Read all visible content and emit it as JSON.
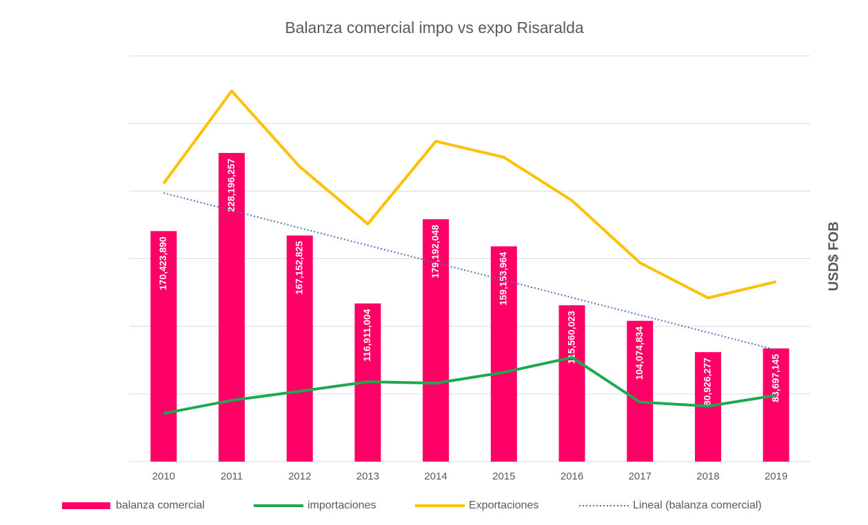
{
  "chart_data": {
    "type": "bar",
    "title": "Balanza comercial impo vs expo Risaralda",
    "y_axis_label": "USD$ FOB",
    "categories": [
      "2010",
      "2011",
      "2012",
      "2013",
      "2014",
      "2015",
      "2016",
      "2017",
      "2018",
      "2019"
    ],
    "series": [
      {
        "name": "balanza comercial",
        "type": "bar",
        "color": "#ff0066",
        "values": [
          170423890,
          228196257,
          167152825,
          116911004,
          179192048,
          159153964,
          115560023,
          104074834,
          80926277,
          83697145
        ],
        "value_labels": [
          "170,423,890",
          "228,196,257",
          "167,152,825",
          "116,911,004",
          "179,192,048",
          "159,153,964",
          "115,560,023",
          "104,074,834",
          "80,926,277",
          "83,697,145"
        ]
      },
      {
        "name": "importaciones",
        "type": "line",
        "color": "#1fa84f",
        "values": [
          35600000,
          45300000,
          52000000,
          59000000,
          58000000,
          66000000,
          77000000,
          44000000,
          41000000,
          49000000
        ]
      },
      {
        "name": "Exportaciones",
        "type": "line",
        "color": "#ffc000",
        "values": [
          205700000,
          274000000,
          218000000,
          175700000,
          236800000,
          225000000,
          193000000,
          147000000,
          121000000,
          133000000
        ]
      },
      {
        "name": "Lineal (balanza comercial)",
        "type": "line",
        "style": "dotted",
        "color": "#4472c4",
        "values": [
          198600000,
          185700000,
          172800000,
          159900000,
          147000000,
          134200000,
          121300000,
          108400000,
          95500000,
          82600000
        ]
      }
    ],
    "ylim": [
      0,
      300000000
    ],
    "yticks": [
      0,
      50000000,
      100000000,
      150000000,
      200000000,
      250000000,
      300000000
    ],
    "grid": true,
    "legend": "bottom"
  }
}
